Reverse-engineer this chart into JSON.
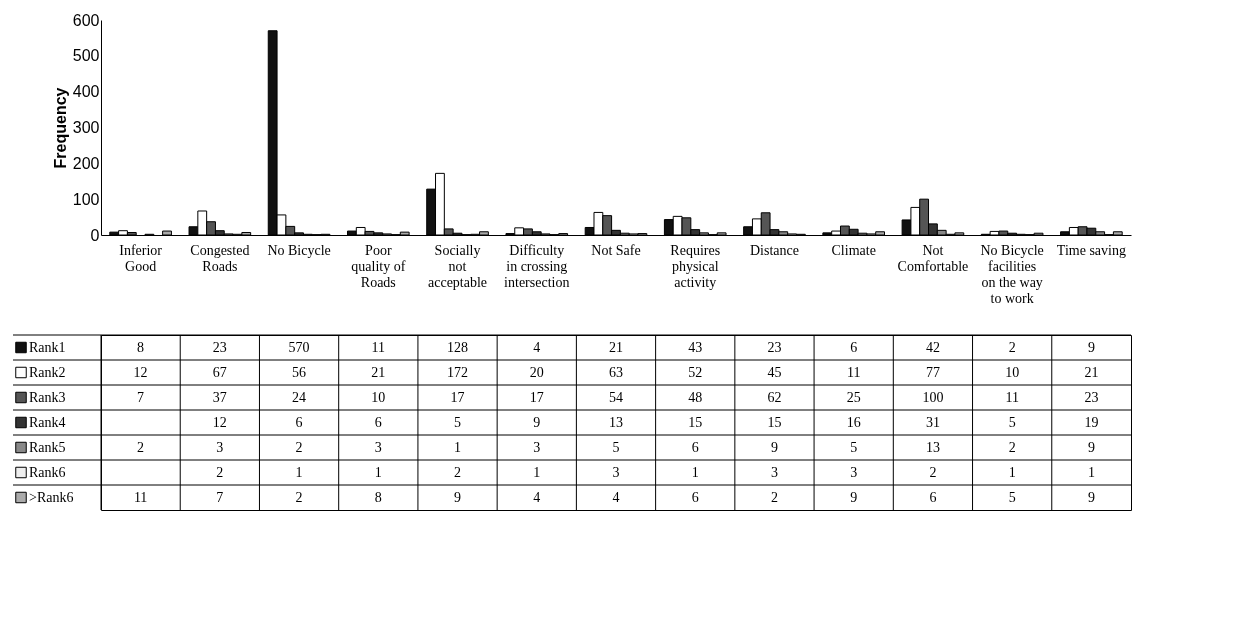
{
  "chart_data": {
    "type": "bar",
    "ylabel": "Frequency",
    "ylim": [
      0,
      600
    ],
    "yticks": [
      0,
      100,
      200,
      300,
      400,
      500,
      600
    ],
    "data_labels": true,
    "legend": "bottom left",
    "categories": [
      "Inferior Good",
      "Congested Roads",
      "No Bicycle",
      "Poor quality of Roads",
      "Socially not acceptable",
      "Difficulty in crossing intersection",
      "Not Safe",
      "Requires physical activity",
      "Distance",
      "Climate",
      "Not Comfortable",
      "No Bicycle facilities on the way to work",
      "Time saving"
    ],
    "series": [
      {
        "name": "Rank1",
        "color": "#111111",
        "values": [
          8,
          23,
          570,
          11,
          128,
          4,
          21,
          43,
          23,
          6,
          42,
          2,
          9
        ]
      },
      {
        "name": "Rank2",
        "color": "#ffffff",
        "values": [
          12,
          67,
          56,
          21,
          172,
          20,
          63,
          52,
          45,
          11,
          77,
          10,
          21
        ]
      },
      {
        "name": "Rank3",
        "color": "#555555",
        "values": [
          7,
          37,
          24,
          10,
          17,
          17,
          54,
          48,
          62,
          25,
          100,
          11,
          23
        ]
      },
      {
        "name": "Rank4",
        "color": "#333333",
        "values": [
          null,
          12,
          6,
          6,
          5,
          9,
          13,
          15,
          15,
          16,
          31,
          5,
          19
        ]
      },
      {
        "name": "Rank5",
        "color": "#888888",
        "values": [
          2,
          3,
          2,
          3,
          1,
          3,
          5,
          6,
          9,
          5,
          13,
          2,
          9
        ]
      },
      {
        "name": "Rank6",
        "color": "#eeeeee",
        "values": [
          null,
          2,
          1,
          1,
          2,
          1,
          3,
          1,
          3,
          3,
          2,
          1,
          1
        ]
      },
      {
        "name": ">Rank6",
        "color": "#aaaaaa",
        "values": [
          11,
          7,
          2,
          8,
          9,
          4,
          4,
          6,
          2,
          9,
          6,
          5,
          9
        ]
      }
    ]
  }
}
